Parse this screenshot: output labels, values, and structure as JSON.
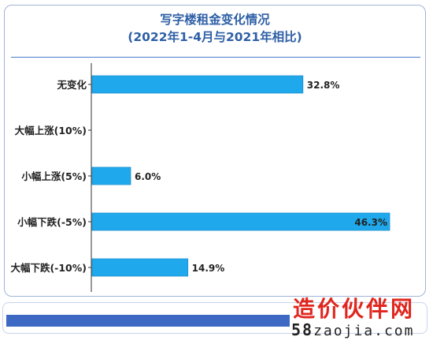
{
  "chart_data": {
    "type": "bar",
    "orientation": "horizontal",
    "title": "写字楼租金变化情况",
    "subtitle": "(2022年1-4月与2021年相比)",
    "categories": [
      "无变化",
      "大幅上涨(10%)",
      "小幅上涨(5%)",
      "小幅下跌(-5%)",
      "大幅下跌(-10%)"
    ],
    "values": [
      32.8,
      0,
      6.0,
      46.3,
      14.9
    ],
    "value_labels": [
      "32.8%",
      "",
      "6.0%",
      "46.3%",
      "14.9%"
    ],
    "xlim": [
      0,
      46.3
    ],
    "grid": false,
    "colors": {
      "bar": "#1fa9ec",
      "bar_edge": "#1b8fd0",
      "axis": "#333333",
      "title": "#2e5fa6"
    }
  },
  "watermark": {
    "cn": "造价伙伴网",
    "url_prefix": "58",
    "url_rest": "zaojia.com"
  }
}
